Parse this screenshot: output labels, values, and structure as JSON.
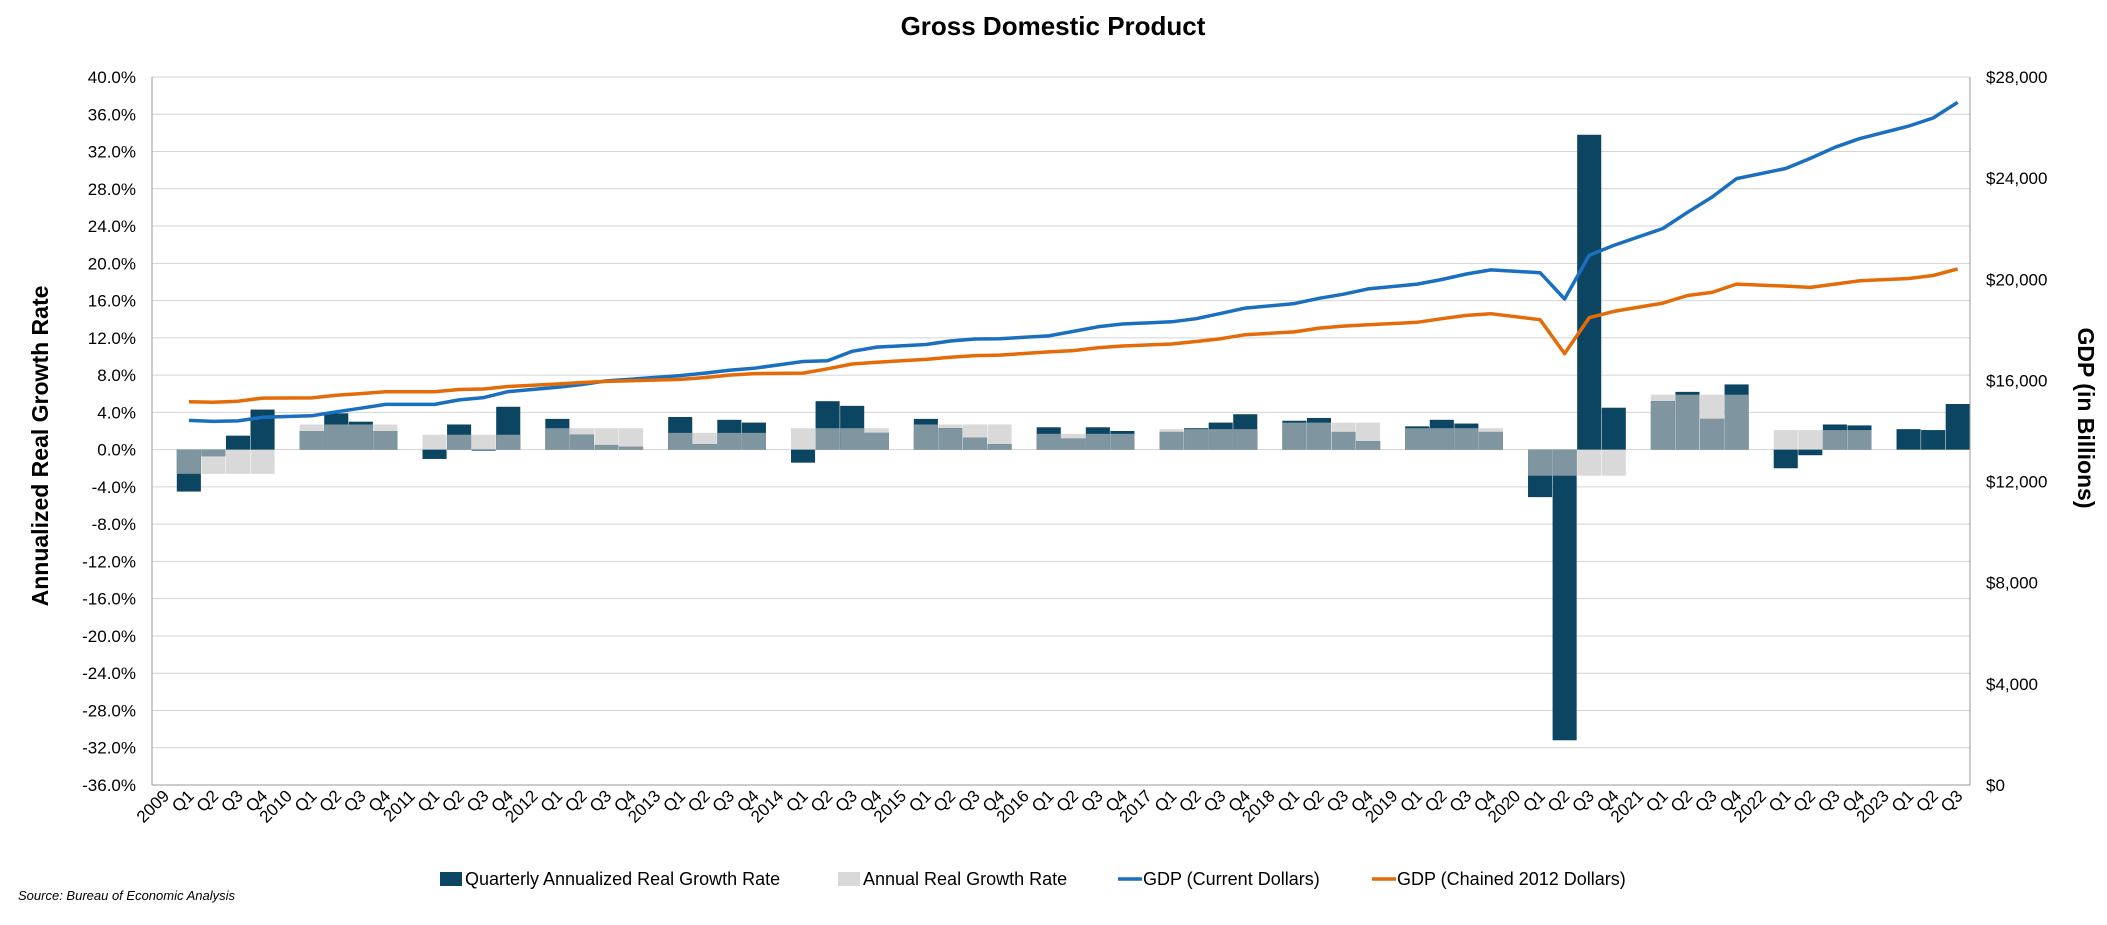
{
  "chart_data": {
    "type": "bar+line",
    "title": "Gross Domestic Product",
    "ylabel_left": "Annualized Real Growth Rate",
    "ylabel_right": "GDP (in Billions)",
    "ylim_left": [
      -36,
      40
    ],
    "ylim_right": [
      0,
      28000
    ],
    "left_ticks": [
      "40.0%",
      "36.0%",
      "32.0%",
      "28.0%",
      "24.0%",
      "20.0%",
      "16.0%",
      "12.0%",
      "8.0%",
      "4.0%",
      "0.0%",
      "-4.0%",
      "-8.0%",
      "-12.0%",
      "-16.0%",
      "-20.0%",
      "-24.0%",
      "-28.0%",
      "-32.0%",
      "-36.0%"
    ],
    "right_ticks": [
      "$28,000",
      "$24,000",
      "$20,000",
      "$16,000",
      "$12,000",
      "$8,000",
      "$4,000",
      "$0"
    ],
    "categories": [
      "2009",
      "Q1",
      "Q2",
      "Q3",
      "Q4",
      "2010",
      "Q1",
      "Q2",
      "Q3",
      "Q4",
      "2011",
      "Q1",
      "Q2",
      "Q3",
      "Q4",
      "2012",
      "Q1",
      "Q2",
      "Q3",
      "Q4",
      "2013",
      "Q1",
      "Q2",
      "Q3",
      "Q4",
      "2014",
      "Q1",
      "Q2",
      "Q3",
      "Q4",
      "2015",
      "Q1",
      "Q2",
      "Q3",
      "Q4",
      "2016",
      "Q1",
      "Q2",
      "Q3",
      "Q4",
      "2017",
      "Q1",
      "Q2",
      "Q3",
      "Q4",
      "2018",
      "Q1",
      "Q2",
      "Q3",
      "Q4",
      "2019",
      "Q1",
      "Q2",
      "Q3",
      "Q4",
      "2020",
      "Q1",
      "Q2",
      "Q3",
      "Q4",
      "2021",
      "Q1",
      "Q2",
      "Q3",
      "Q4",
      "2022",
      "Q1",
      "Q2",
      "Q3",
      "Q4",
      "2023",
      "Q1",
      "Q2",
      "Q3"
    ],
    "series": [
      {
        "name": "Quarterly Annualized Real Growth Rate",
        "kind": "bar",
        "color": "#0b4562",
        "values": [
          null,
          -4.5,
          -0.7,
          1.5,
          4.3,
          null,
          2.0,
          3.9,
          3.0,
          2.0,
          null,
          -1.0,
          2.7,
          -0.1,
          4.6,
          null,
          3.3,
          1.6,
          0.5,
          0.3,
          null,
          3.5,
          0.6,
          3.2,
          2.9,
          null,
          -1.4,
          5.2,
          4.7,
          1.8,
          null,
          3.3,
          2.3,
          1.3,
          0.6,
          null,
          2.4,
          1.2,
          2.4,
          2.0,
          null,
          1.9,
          2.3,
          2.9,
          3.8,
          null,
          3.1,
          3.4,
          1.9,
          0.9,
          null,
          2.5,
          3.2,
          2.8,
          1.9,
          null,
          -5.1,
          -31.2,
          33.8,
          4.5,
          null,
          5.2,
          6.2,
          3.3,
          7.0,
          null,
          -2.0,
          -0.6,
          2.7,
          2.6,
          null,
          2.2,
          2.1,
          4.9
        ]
      },
      {
        "name": "Annual Real Growth Rate",
        "kind": "bar",
        "color": "#d9d9d9",
        "values": [
          null,
          -2.6,
          -2.6,
          -2.6,
          -2.6,
          null,
          2.7,
          2.7,
          2.7,
          2.7,
          null,
          1.6,
          1.6,
          1.6,
          1.6,
          null,
          2.3,
          2.3,
          2.3,
          2.3,
          null,
          1.8,
          1.8,
          1.8,
          1.8,
          null,
          2.3,
          2.3,
          2.3,
          2.3,
          null,
          2.7,
          2.7,
          2.7,
          2.7,
          null,
          1.7,
          1.7,
          1.7,
          1.7,
          null,
          2.2,
          2.2,
          2.2,
          2.2,
          null,
          2.9,
          2.9,
          2.9,
          2.9,
          null,
          2.3,
          2.3,
          2.3,
          2.3,
          null,
          -2.8,
          -2.8,
          -2.8,
          -2.8,
          null,
          5.9,
          5.9,
          5.9,
          5.9,
          null,
          2.1,
          2.1,
          2.1,
          2.1,
          null,
          null,
          null,
          null
        ]
      },
      {
        "name": "GDP (Current Dollars)",
        "kind": "line",
        "axis": "right",
        "color": "#1a6fbf",
        "values": [
          null,
          14420,
          14380,
          14400,
          14540,
          null,
          14600,
          14760,
          14900,
          15050,
          null,
          15050,
          15230,
          15320,
          15560,
          null,
          15730,
          15840,
          15980,
          16050,
          null,
          16190,
          16290,
          16400,
          16480,
          null,
          16750,
          16780,
          17150,
          17320,
          null,
          17420,
          17560,
          17640,
          17650,
          null,
          17760,
          17940,
          18120,
          18230,
          null,
          18320,
          18440,
          18650,
          18860,
          null,
          19040,
          19250,
          19410,
          19620,
          null,
          19810,
          19990,
          20210,
          20370,
          null,
          20260,
          19220,
          20950,
          21340,
          null,
          22010,
          22650,
          23250,
          23980,
          null,
          24380,
          24780,
          25220,
          25560,
          null,
          26060,
          26380,
          27000
        ]
      },
      {
        "name": "GDP (Chained 2012 Dollars)",
        "kind": "line",
        "axis": "right",
        "color": "#e36c09",
        "values": [
          null,
          15160,
          15140,
          15180,
          15300,
          null,
          15310,
          15410,
          15480,
          15550,
          null,
          15550,
          15640,
          15660,
          15760,
          null,
          15860,
          15920,
          15960,
          15990,
          null,
          16040,
          16110,
          16210,
          16270,
          null,
          16290,
          16460,
          16650,
          16720,
          null,
          16830,
          16920,
          16980,
          17000,
          null,
          17130,
          17180,
          17290,
          17360,
          null,
          17440,
          17540,
          17650,
          17810,
          null,
          17920,
          18070,
          18150,
          18200,
          null,
          18300,
          18440,
          18570,
          18640,
          null,
          18400,
          17060,
          18480,
          18730,
          null,
          19060,
          19360,
          19480,
          19810,
          null,
          19730,
          19680,
          19810,
          19940,
          null,
          20030,
          20150,
          20410
        ]
      }
    ]
  },
  "source": "Source: Bureau of Economic Analysis"
}
